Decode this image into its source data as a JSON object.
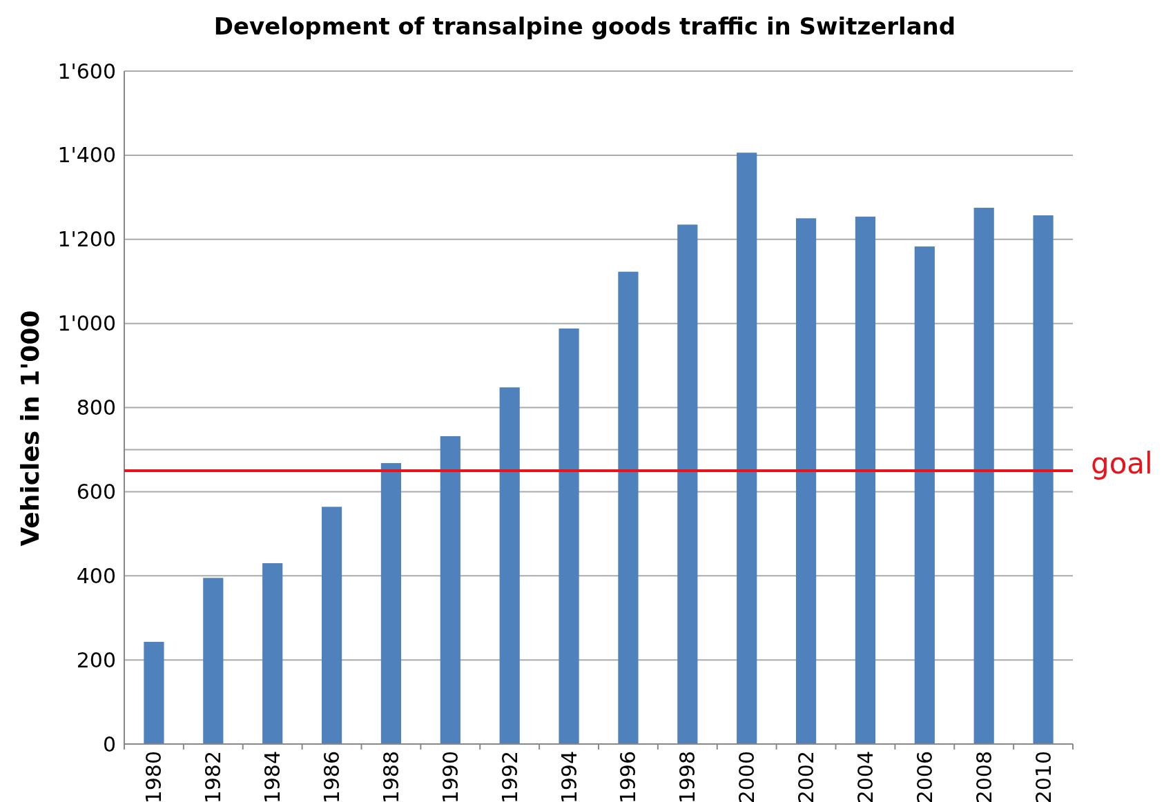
{
  "chart_data": {
    "type": "bar",
    "title": "Development of transalpine goods traffic in Switzerland",
    "ylabel": "Vehicles in 1'000",
    "categories": [
      "1980",
      "1982",
      "1984",
      "1986",
      "1988",
      "1990",
      "1992",
      "1994",
      "1996",
      "1998",
      "2000",
      "2002",
      "2004",
      "2006",
      "2008",
      "2010"
    ],
    "values": [
      243,
      395,
      430,
      564,
      668,
      732,
      848,
      988,
      1123,
      1235,
      1406,
      1250,
      1254,
      1183,
      1275,
      1257
    ],
    "color": "#4f81bd",
    "ylim": [
      0,
      1600
    ],
    "yticks": [
      0,
      200,
      400,
      600,
      {
        "value": 700,
        "label": null
      },
      800,
      {
        "value": 1000,
        "label": "1'000"
      },
      {
        "value": 1200,
        "label": "1'200"
      },
      {
        "value": 1400,
        "label": "1'400"
      },
      {
        "value": 1600,
        "label": "1'600"
      }
    ],
    "grid": "y",
    "ref_lines": [
      {
        "axis": "y",
        "value": 650,
        "label": "goal",
        "color": "#e8141b"
      }
    ]
  }
}
